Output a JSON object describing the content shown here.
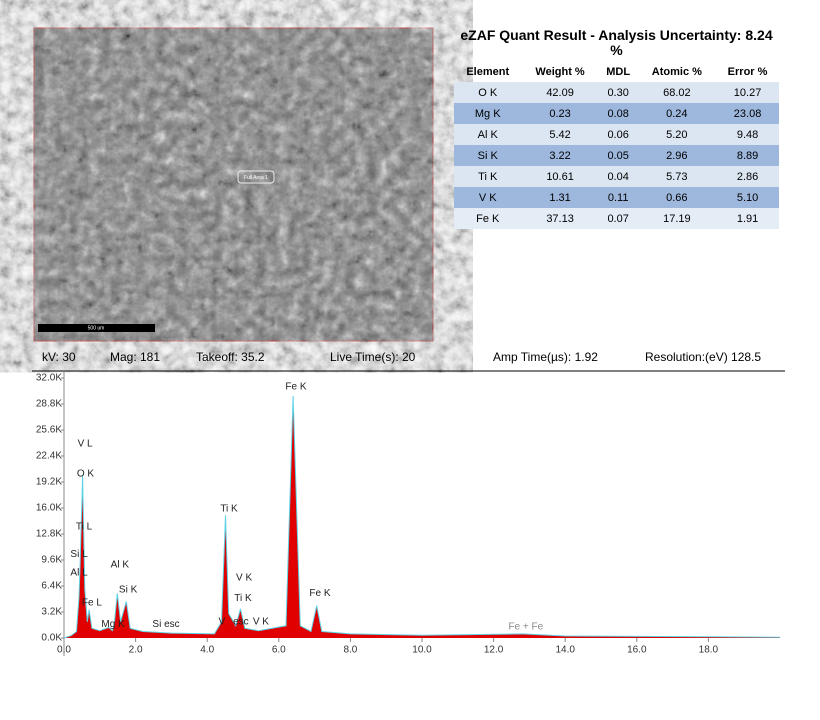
{
  "image": {
    "area_label": "Full Area 1",
    "scale_label": "500 um"
  },
  "table": {
    "title": "eZAF Quant Result - Analysis Uncertainty: 8.24 %",
    "columns": [
      "Element",
      "Weight %",
      "MDL",
      "Atomic %",
      "Error %"
    ],
    "rows": [
      [
        "O  K",
        "42.09",
        "0.30",
        "68.02",
        "10.27"
      ],
      [
        "Mg K",
        "0.23",
        "0.08",
        "0.24",
        "23.08"
      ],
      [
        "Al K",
        "5.42",
        "0.06",
        "5.20",
        "9.48"
      ],
      [
        "Si K",
        "3.22",
        "0.05",
        "2.96",
        "8.89"
      ],
      [
        "Ti K",
        "10.61",
        "0.04",
        "5.73",
        "2.86"
      ],
      [
        "V  K",
        "1.31",
        "0.11",
        "0.66",
        "5.10"
      ],
      [
        "Fe K",
        "37.13",
        "0.07",
        "17.19",
        "1.91"
      ]
    ]
  },
  "conditions": [
    "kV: 30",
    "Mag: 181",
    "Takeoff: 35.2",
    "Live Time(s): 20",
    "Amp Time(µs): 1.92",
    "Resolution:(eV) 128.5"
  ],
  "chart_data": {
    "type": "area",
    "x": [
      0,
      0.2,
      0.35,
      0.42,
      0.45,
      0.52,
      0.58,
      0.65,
      0.7,
      0.78,
      1.0,
      1.25,
      1.35,
      1.4,
      1.49,
      1.58,
      1.74,
      1.85,
      2.2,
      3.0,
      4.2,
      4.4,
      4.51,
      4.6,
      4.8,
      4.93,
      5.05,
      5.43,
      6.2,
      6.4,
      6.6,
      6.9,
      7.06,
      7.2,
      8.0,
      10.0,
      12.8,
      14.0,
      16.0,
      18.0,
      20.0
    ],
    "series": [
      {
        "color": "#e00000",
        "line_color": "#5fd3e6",
        "values": [
          0,
          300,
          800,
          5000,
          9000,
          20000,
          6000,
          2000,
          3500,
          1200,
          900,
          1300,
          900,
          1500,
          5500,
          2000,
          4500,
          1200,
          800,
          600,
          500,
          2000,
          15100,
          3000,
          1500,
          3600,
          1200,
          900,
          1500,
          29800,
          1500,
          800,
          4000,
          800,
          500,
          350,
          500,
          250,
          200,
          150,
          100
        ]
      }
    ],
    "xlim": [
      0,
      20
    ],
    "xticks": [
      {
        "value": 0,
        "label": "0.0"
      },
      {
        "value": 2,
        "label": "2.0"
      },
      {
        "value": 4,
        "label": "4.0"
      },
      {
        "value": 6,
        "label": "6.0"
      },
      {
        "value": 8,
        "label": "8.0"
      },
      {
        "value": 10,
        "label": "10.0"
      },
      {
        "value": 12,
        "label": "12.0"
      },
      {
        "value": 14,
        "label": "14.0"
      },
      {
        "value": 16,
        "label": "16.0"
      },
      {
        "value": 18,
        "label": "18.0"
      }
    ],
    "ylim": [
      0,
      32000
    ],
    "yticks": [
      {
        "value": 0,
        "label": "0.0K"
      },
      {
        "value": 3200,
        "label": "3.2K"
      },
      {
        "value": 6400,
        "label": "6.4K"
      },
      {
        "value": 9600,
        "label": "9.6K"
      },
      {
        "value": 12800,
        "label": "12.8K"
      },
      {
        "value": 16000,
        "label": "16.0K"
      },
      {
        "value": 19200,
        "label": "19.2K"
      },
      {
        "value": 22400,
        "label": "22.4K"
      },
      {
        "value": 25600,
        "label": "25.6K"
      },
      {
        "value": 28800,
        "label": "28.8K"
      },
      {
        "value": 32000,
        "label": "32.0K"
      }
    ],
    "annotations": [
      {
        "text": "V L",
        "x": 0.59,
        "y": 23900
      },
      {
        "text": "O K",
        "x": 0.6,
        "y": 20200
      },
      {
        "text": "Ti L",
        "x": 0.56,
        "y": 13700
      },
      {
        "text": "Si L",
        "x": 0.42,
        "y": 10300
      },
      {
        "text": "Al L",
        "x": 0.42,
        "y": 8000
      },
      {
        "text": "Fe L",
        "x": 0.78,
        "y": 4300
      },
      {
        "text": "Mg K",
        "x": 1.37,
        "y": 1700
      },
      {
        "text": "Al K",
        "x": 1.56,
        "y": 9000
      },
      {
        "text": "Si K",
        "x": 1.79,
        "y": 5900
      },
      {
        "text": "Si  esc",
        "x": 2.85,
        "y": 1700
      },
      {
        "text": "V",
        "x": 4.41,
        "y": 2000
      },
      {
        "text": "Ti K",
        "x": 4.61,
        "y": 15900
      },
      {
        "text": "V  K",
        "x": 5.03,
        "y": 7400
      },
      {
        "text": "Ti K",
        "x": 5.0,
        "y": 4900
      },
      {
        "text": "esc",
        "x": 4.94,
        "y": 2000
      },
      {
        "text": "V  K",
        "x": 5.5,
        "y": 2000
      },
      {
        "text": "Fe K",
        "x": 6.48,
        "y": 30900
      },
      {
        "text": "Fe K",
        "x": 7.15,
        "y": 5500
      },
      {
        "text": "Fe + Fe",
        "x": 12.9,
        "y": 1350
      }
    ]
  }
}
